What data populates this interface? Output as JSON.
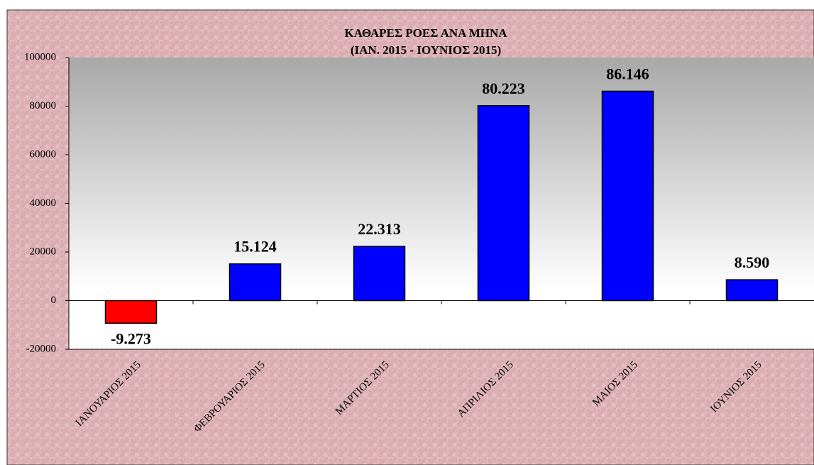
{
  "chart_data": {
    "type": "bar",
    "title": "ΚΑΘΑΡΕΣ ΡΟΕΣ ΑΝΑ ΜΗΝΑ",
    "subtitle": "(ΙΑΝ. 2015 - ΙΟΥΝΙΟΣ 2015)",
    "categories": [
      "ΙΑΝΟΥΑΡΙΟΣ 2015",
      "ΦΕΒΡΟΥΑΡΙΟΣ 2015",
      "ΜΑΡΤΙΟΣ 2015",
      "ΑΠΡΙΛΙΟΣ 2015",
      "ΜΑΙΟΣ 2015",
      "ΙΟΥΝΙΟΣ 2015"
    ],
    "values": [
      -9273,
      15124,
      22313,
      80223,
      86146,
      8590
    ],
    "value_labels": [
      "-9.273",
      "15.124",
      "22.313",
      "80.223",
      "86.146",
      "8.590"
    ],
    "colors": [
      "#ff0000",
      "#0000ff",
      "#0000ff",
      "#0000ff",
      "#0000ff",
      "#0000ff"
    ],
    "ylim": [
      -20000,
      100000
    ],
    "yticks": [
      -20000,
      0,
      20000,
      40000,
      60000,
      80000,
      100000
    ]
  }
}
